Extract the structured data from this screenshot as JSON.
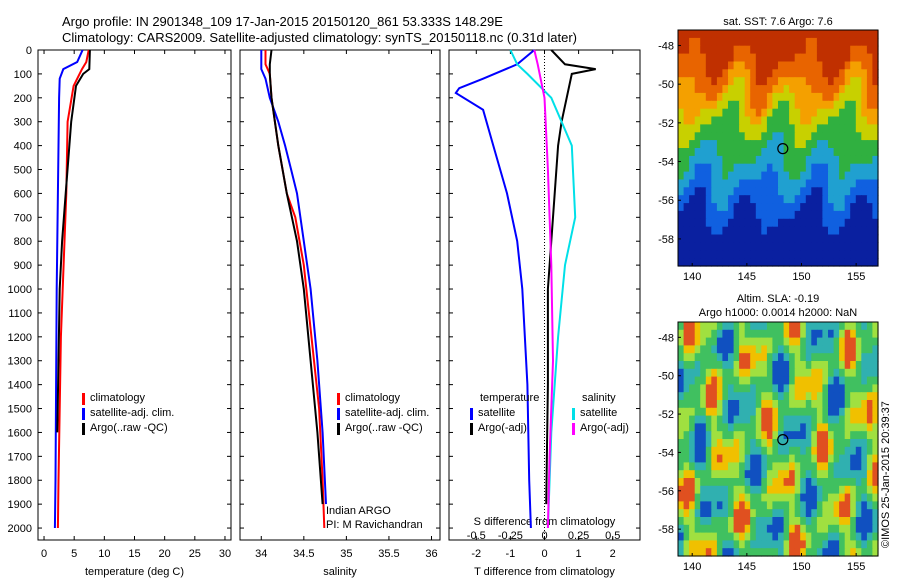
{
  "header": {
    "line1": "Argo profile: IN 2901348_109 17-Jan-2015 20150120_861 53.333S 148.29E",
    "line2": "Climatology: CARS2009. Satellite-adjusted climatology: synTS_20150118.nc (0.31d later)"
  },
  "colors": {
    "climatology": "#ff0000",
    "satellite": "#0000ff",
    "argo": "#000000",
    "satellite_s": "#00e0e8",
    "argo_s": "#ff00ff"
  },
  "chart_data": [
    {
      "type": "line",
      "panel": "temperature",
      "xlabel": "temperature (deg C)",
      "xlim": [
        -1,
        31
      ],
      "xticks": [
        0,
        5,
        10,
        15,
        20,
        25,
        30
      ],
      "ylim": [
        2050,
        0
      ],
      "yticks": [
        0,
        100,
        200,
        300,
        400,
        500,
        600,
        700,
        800,
        900,
        1000,
        1100,
        1200,
        1300,
        1400,
        1500,
        1600,
        1700,
        1800,
        1900,
        2000
      ],
      "series": [
        {
          "name": "climatology",
          "color": "#ff0000",
          "x": [
            7.4,
            7.0,
            6.3,
            4.9,
            3.9,
            3.7,
            3.4,
            3.1,
            2.8,
            2.6,
            2.4,
            2.3
          ],
          "y": [
            0,
            50,
            80,
            150,
            300,
            600,
            800,
            1000,
            1200,
            1500,
            1800,
            2000
          ]
        },
        {
          "name": "satellite-adj. clim.",
          "color": "#0000ff",
          "x": [
            6.4,
            5.5,
            3.2,
            2.6,
            2.5,
            2.4,
            2.3,
            2.2,
            2.1,
            2.0,
            1.9,
            1.8
          ],
          "y": [
            0,
            50,
            80,
            120,
            200,
            400,
            600,
            800,
            1000,
            1400,
            1800,
            2000
          ]
        },
        {
          "name": "Argo(..raw -QC)",
          "color": "#000000",
          "x": [
            7.6,
            7.5,
            6.5,
            5.3,
            4.5,
            3.6,
            3.0,
            2.6,
            2.4,
            2.2
          ],
          "y": [
            0,
            80,
            100,
            150,
            300,
            600,
            800,
            1000,
            1300,
            1600
          ]
        }
      ],
      "legend": [
        "climatology",
        "satellite-adj. clim.",
        "Argo(..raw -QC)"
      ]
    },
    {
      "type": "line",
      "panel": "salinity",
      "xlabel": "salinity",
      "xlim": [
        33.75,
        36.1
      ],
      "xticks": [
        34,
        34.5,
        35,
        35.5,
        36
      ],
      "xticklabels": [
        "34",
        "34.5",
        "35",
        "35.5",
        "36"
      ],
      "ylim": [
        2050,
        0
      ],
      "series": [
        {
          "name": "climatology",
          "color": "#ff0000",
          "x": [
            34.05,
            34.05,
            34.1,
            34.12,
            34.2,
            34.3,
            34.4,
            34.5,
            34.56,
            34.62,
            34.68,
            34.72,
            34.74
          ],
          "y": [
            0,
            60,
            100,
            200,
            400,
            600,
            700,
            900,
            1100,
            1300,
            1500,
            1800,
            2000
          ]
        },
        {
          "name": "satellite-adj. clim.",
          "color": "#0000ff",
          "x": [
            34.0,
            34.0,
            34.05,
            34.1,
            34.2,
            34.28,
            34.35,
            34.42,
            34.5,
            34.58,
            34.66,
            34.72,
            34.76
          ],
          "y": [
            0,
            80,
            120,
            200,
            300,
            400,
            500,
            600,
            800,
            1000,
            1300,
            1600,
            1900
          ]
        },
        {
          "name": "Argo(..raw -QC)",
          "color": "#000000",
          "x": [
            34.12,
            34.1,
            34.1,
            34.12,
            34.2,
            34.3,
            34.42,
            34.5,
            34.58,
            34.66,
            34.72
          ],
          "y": [
            0,
            60,
            100,
            200,
            400,
            600,
            800,
            1000,
            1300,
            1600,
            1900
          ]
        }
      ],
      "legend": [
        "climatology",
        "satellite-adj. clim.",
        "Argo(..raw -QC)"
      ]
    },
    {
      "type": "line",
      "panel": "difference",
      "xlabel": "T difference from climatology",
      "xlabel_top": "S difference from climatology",
      "xlim": [
        -2.8,
        2.8
      ],
      "xticks": [
        -2,
        -1,
        0,
        1,
        2
      ],
      "s_xticks": [
        -0.5,
        -0.25,
        0,
        0.25,
        0.5
      ],
      "s_xticklabels": [
        "-0.5",
        "-0.25",
        "0",
        "0.25",
        "0.5"
      ],
      "ylim": [
        2050,
        0
      ],
      "series": [
        {
          "name": "satellite (temperature)",
          "color": "#0000ff",
          "x": [
            -0.3,
            -0.8,
            -1.8,
            -2.5,
            -2.6,
            -1.8,
            -1.5,
            -1.1,
            -0.8,
            -0.65,
            -0.5,
            -0.45,
            -0.4
          ],
          "y": [
            0,
            60,
            120,
            160,
            180,
            250,
            400,
            600,
            800,
            1000,
            1400,
            1800,
            2000
          ]
        },
        {
          "name": "Argo(-adj) (temperature)",
          "color": "#000000",
          "x": [
            0.2,
            0.6,
            1.5,
            0.8,
            0.5,
            0.4,
            0.3,
            0.2,
            0.1,
            0.1,
            0.05
          ],
          "y": [
            0,
            60,
            80,
            100,
            300,
            400,
            600,
            800,
            1000,
            1400,
            1900
          ]
        },
        {
          "name": "satellite (salinity)",
          "color": "#00e0e8",
          "x": [
            -1.0,
            -0.8,
            -0.5,
            0.2,
            0.8,
            0.9,
            0.6,
            0.4,
            0.2,
            0.1
          ],
          "y": [
            0,
            60,
            100,
            200,
            400,
            700,
            900,
            1200,
            1600,
            2000
          ]
        },
        {
          "name": "Argo(-adj) (salinity)",
          "color": "#ff00ff",
          "x": [
            -0.3,
            -0.2,
            0.0,
            0.1,
            0.2,
            0.25,
            0.15,
            0.1
          ],
          "y": [
            0,
            60,
            200,
            500,
            900,
            1300,
            1700,
            2000
          ]
        }
      ],
      "legend_left_title": "temperature",
      "legend_right_title": "salinity",
      "legend_left": [
        "satellite",
        "Argo(-adj)"
      ],
      "legend_right": [
        "satellite",
        "Argo(-adj)"
      ]
    }
  ],
  "notes": {
    "line1": "Indian ARGO",
    "line2": "PI: M Ravichandran"
  },
  "maps": {
    "sst": {
      "title": "sat. SST: 7.6 Argo: 7.6",
      "xticks": [
        140,
        145,
        150,
        155
      ],
      "yticks": [
        -48,
        -50,
        -52,
        -54,
        -56,
        -58
      ]
    },
    "sla": {
      "title1": "Altim. SLA: -0.19",
      "title2": "Argo h1000: 0.0014 h2000: NaN",
      "xticks": [
        140,
        145,
        150,
        155
      ],
      "yticks": [
        -48,
        -50,
        -52,
        -54,
        -56,
        -58
      ]
    }
  },
  "credit": "©IMOS 25-Jan-2015 20:39:37"
}
